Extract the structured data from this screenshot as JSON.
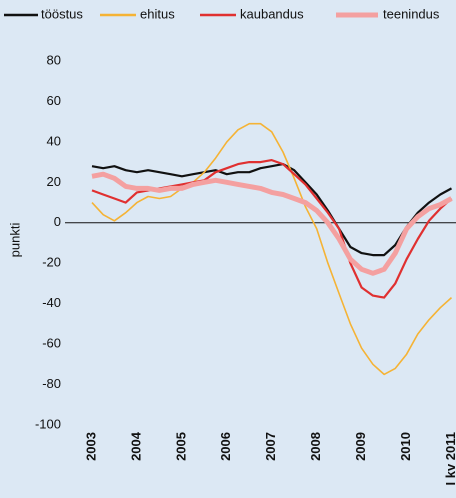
{
  "chart_data": {
    "type": "line",
    "y_label": "punkti",
    "x": [
      2003,
      2003.25,
      2003.5,
      2003.75,
      2004,
      2004.25,
      2004.5,
      2004.75,
      2005,
      2005.25,
      2005.5,
      2005.75,
      2006,
      2006.25,
      2006.5,
      2006.75,
      2007,
      2007.25,
      2007.5,
      2007.75,
      2008,
      2008.25,
      2008.5,
      2008.75,
      2009,
      2009.25,
      2009.5,
      2009.75,
      2010,
      2010.25,
      2010.5,
      2010.75,
      2011
    ],
    "series": [
      {
        "name": "tööstus",
        "color": "#111111",
        "width": 2.2,
        "values": [
          28,
          27,
          28,
          26,
          25,
          26,
          25,
          24,
          23,
          24,
          25,
          26,
          24,
          25,
          25,
          27,
          28,
          29,
          26,
          20,
          14,
          6,
          -3,
          -12,
          -15,
          -16,
          -16,
          -11,
          -2,
          5,
          10,
          14,
          17
        ]
      },
      {
        "name": "ehitus",
        "color": "#f5b335",
        "width": 1.6,
        "values": [
          10,
          4,
          1,
          5,
          10,
          13,
          12,
          13,
          17,
          20,
          25,
          32,
          40,
          46,
          49,
          49,
          45,
          35,
          22,
          8,
          -3,
          -20,
          -35,
          -50,
          -62,
          -70,
          -75,
          -72,
          -65,
          -55,
          -48,
          -42,
          -37
        ]
      },
      {
        "name": "kaubandus",
        "color": "#e03030",
        "width": 2.2,
        "values": [
          16,
          14,
          12,
          10,
          15,
          16,
          17,
          18,
          19,
          20,
          21,
          25,
          27,
          29,
          30,
          30,
          31,
          29,
          24,
          19,
          12,
          5,
          -3,
          -20,
          -32,
          -36,
          -37,
          -30,
          -18,
          -8,
          1,
          7,
          12
        ]
      },
      {
        "name": "teenindus",
        "color": "#f4a0a0",
        "width": 5,
        "values": [
          23,
          24,
          22,
          18,
          17,
          17,
          16,
          17,
          17,
          19,
          20,
          21,
          20,
          19,
          18,
          17,
          15,
          14,
          12,
          10,
          6,
          0,
          -8,
          -18,
          -23,
          -25,
          -23,
          -15,
          -3,
          3,
          7,
          9,
          12
        ]
      }
    ],
    "xlim": [
      2002.4,
      2011.1
    ],
    "xticks": [
      2003,
      2004,
      2005,
      2006,
      2007,
      2008,
      2009,
      2010,
      {
        "value": 2011,
        "label": "I kv 2011"
      }
    ],
    "ylim": [
      -100,
      80
    ],
    "yticks": [
      -100,
      -80,
      -60,
      -40,
      -20,
      0,
      20,
      40,
      60,
      80
    ],
    "zero_line": true
  }
}
